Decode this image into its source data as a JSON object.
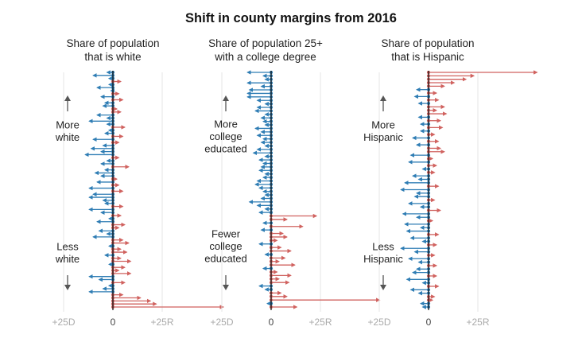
{
  "title": "Shift in county margins from 2016",
  "colors": {
    "dem": "#2f7db4",
    "rep": "#d0625f",
    "tick": "#aaaaaa",
    "grid": "#e4e4e4",
    "axis": "#111111",
    "arrow": "#555555"
  },
  "chart_data": [
    {
      "type": "arrow-dot",
      "title": "Share of population\nthat is white",
      "top_label": "More\nwhite",
      "bottom_label": "Less\nwhite",
      "x_tick_labels": [
        "+25D",
        "0",
        "+25R"
      ],
      "xlim": [
        -25,
        25
      ],
      "counties": [
        -3,
        -10,
        -2,
        4,
        -2,
        -8,
        -1,
        3,
        -6,
        5,
        -4,
        -5,
        2,
        4,
        -8,
        -3,
        -12,
        -3,
        6,
        -2,
        -4,
        5,
        -10,
        3,
        -5,
        -11,
        -6,
        -14,
        3,
        -3,
        -6,
        8,
        -4,
        -9,
        -6,
        2,
        -8,
        3,
        -12,
        5,
        -10,
        -12,
        -5,
        -4,
        5,
        -12,
        -6,
        4,
        -2,
        -8,
        6,
        3,
        -7,
        -3,
        -10,
        5,
        8,
        -2,
        4,
        7,
        -4,
        4,
        9,
        -2,
        6,
        3,
        9,
        -12,
        -7,
        6,
        -2,
        -5,
        -12,
        5,
        14,
        19,
        22,
        56
      ]
    },
    {
      "type": "arrow-dot",
      "title": "Share of population 25+\nwith a college degree",
      "top_label": "More\ncollege\neducated",
      "bottom_label": "Fewer\ncollege\neducated",
      "x_tick_labels": [
        "+25D",
        "0",
        "+25R"
      ],
      "xlim": [
        -25,
        25
      ],
      "counties": [
        -12,
        -4,
        -3,
        -12,
        -5,
        -11,
        -12,
        -12,
        -7,
        -3,
        -7,
        -8,
        -3,
        -5,
        -4,
        -3,
        -8,
        -5,
        -7,
        -4,
        -5,
        -3,
        -7,
        -9,
        -3,
        -6,
        -4,
        -5,
        -6,
        -3,
        -4,
        -7,
        -8,
        -6,
        -4,
        -3,
        -5,
        -11,
        -7,
        -3,
        -6,
        23,
        8,
        -4,
        16,
        -5,
        6,
        8,
        3,
        -6,
        5,
        10,
        -3,
        7,
        4,
        12,
        -4,
        3,
        10,
        4,
        9,
        -6,
        -3,
        5,
        8,
        55,
        -2,
        13
      ]
    },
    {
      "type": "arrow-dot",
      "title": "Share of population\nthat is Hispanic",
      "top_label": "More\nHispanic",
      "bottom_label": "Less\nHispanic",
      "x_tick_labels": [
        "+25D",
        "0",
        "+25R"
      ],
      "xlim": [
        -25,
        25
      ],
      "counties": [
        55,
        23,
        19,
        13,
        8,
        -6,
        4,
        -7,
        5,
        -5,
        8,
        4,
        9,
        -5,
        6,
        -4,
        7,
        -4,
        3,
        -8,
        5,
        -6,
        6,
        8,
        -9,
        2,
        -10,
        4,
        -3,
        3,
        -8,
        -5,
        -12,
        5,
        -14,
        -6,
        -7,
        3,
        -10,
        -4,
        6,
        -13,
        -6,
        2,
        -12,
        -4,
        -11,
        5,
        -9,
        -3,
        4,
        -14,
        -7,
        3,
        -10,
        -5,
        4,
        -6,
        -8,
        4,
        -11,
        -3,
        5,
        -9,
        -5,
        3,
        2,
        -4,
        -3
      ]
    }
  ]
}
